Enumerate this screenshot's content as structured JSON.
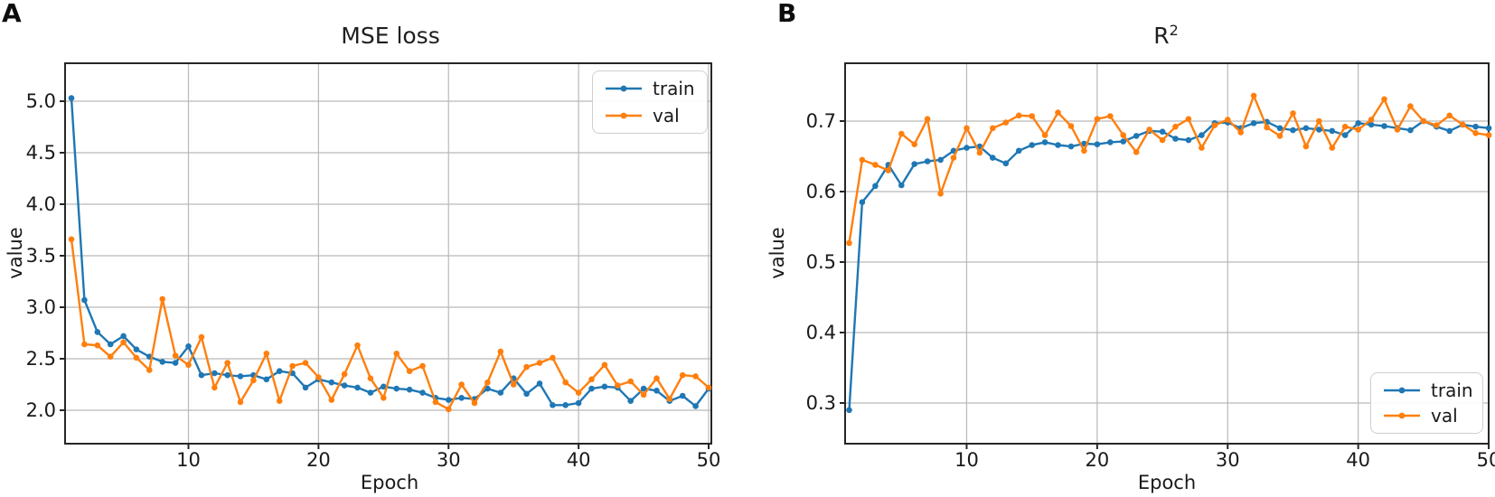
{
  "figure": {
    "panel_a_label": "A",
    "panel_b_label": "B",
    "background": "#ffffff"
  },
  "chart_data": [
    {
      "type": "line",
      "panel": "A",
      "title": "MSE loss",
      "xlabel": "Epoch",
      "ylabel": "value",
      "grid": true,
      "legend": {
        "position": "upper right",
        "entries": [
          "train",
          "val"
        ]
      },
      "xlim": [
        0.5,
        50.2
      ],
      "ylim": [
        1.67,
        5.37
      ],
      "xticks": [
        10,
        20,
        30,
        40,
        50
      ],
      "ytick_labels": [
        "5.0",
        "4.5",
        "4.0",
        "3.5",
        "3.0",
        "2.5",
        "2.0"
      ],
      "x": [
        1,
        2,
        3,
        4,
        5,
        6,
        7,
        8,
        9,
        10,
        11,
        12,
        13,
        14,
        15,
        16,
        17,
        18,
        19,
        20,
        21,
        22,
        23,
        24,
        25,
        26,
        27,
        28,
        29,
        30,
        31,
        32,
        33,
        34,
        35,
        36,
        37,
        38,
        39,
        40,
        41,
        42,
        43,
        44,
        45,
        46,
        47,
        48,
        49,
        50
      ],
      "series": [
        {
          "name": "train",
          "color": "#1f77b4",
          "values": [
            5.03,
            3.07,
            2.76,
            2.64,
            2.72,
            2.59,
            2.52,
            2.47,
            2.46,
            2.62,
            2.34,
            2.36,
            2.34,
            2.33,
            2.34,
            2.3,
            2.38,
            2.36,
            2.22,
            2.3,
            2.27,
            2.24,
            2.22,
            2.17,
            2.23,
            2.21,
            2.2,
            2.17,
            2.12,
            2.1,
            2.12,
            2.11,
            2.21,
            2.17,
            2.31,
            2.16,
            2.26,
            2.05,
            2.05,
            2.07,
            2.21,
            2.23,
            2.22,
            2.09,
            2.21,
            2.19,
            2.09,
            2.14,
            2.04,
            2.21
          ]
        },
        {
          "name": "val",
          "color": "#ff7f0e",
          "values": [
            3.66,
            2.64,
            2.63,
            2.52,
            2.66,
            2.51,
            2.39,
            3.08,
            2.53,
            2.44,
            2.71,
            2.22,
            2.46,
            2.08,
            2.29,
            2.55,
            2.09,
            2.43,
            2.46,
            2.32,
            2.1,
            2.35,
            2.63,
            2.31,
            2.12,
            2.55,
            2.38,
            2.43,
            2.08,
            2.01,
            2.25,
            2.07,
            2.27,
            2.57,
            2.25,
            2.42,
            2.46,
            2.51,
            2.27,
            2.17,
            2.3,
            2.44,
            2.24,
            2.28,
            2.15,
            2.31,
            2.11,
            2.34,
            2.33,
            2.22
          ]
        }
      ]
    },
    {
      "type": "line",
      "panel": "B",
      "title": "R²",
      "title_base": "R",
      "title_superscript": "2",
      "xlabel": "Epoch",
      "ylabel": "value",
      "grid": true,
      "legend": {
        "position": "lower right",
        "entries": [
          "train",
          "val"
        ]
      },
      "xlim": [
        0.7,
        50.0
      ],
      "ylim": [
        0.24,
        0.78
      ],
      "xticks": [
        10,
        20,
        30,
        40,
        50
      ],
      "ytick_labels": [
        "0.7",
        "0.6",
        "0.5",
        "0.4",
        "0.3"
      ],
      "x": [
        1,
        2,
        3,
        4,
        5,
        6,
        7,
        8,
        9,
        10,
        11,
        12,
        13,
        14,
        15,
        16,
        17,
        18,
        19,
        20,
        21,
        22,
        23,
        24,
        25,
        26,
        27,
        28,
        29,
        30,
        31,
        32,
        33,
        34,
        35,
        36,
        37,
        38,
        39,
        40,
        41,
        42,
        43,
        44,
        45,
        46,
        47,
        48,
        49,
        50
      ],
      "series": [
        {
          "name": "train",
          "color": "#1f77b4",
          "values": [
            0.29,
            0.585,
            0.608,
            0.638,
            0.609,
            0.639,
            0.643,
            0.645,
            0.658,
            0.662,
            0.664,
            0.648,
            0.64,
            0.658,
            0.666,
            0.67,
            0.666,
            0.664,
            0.668,
            0.667,
            0.67,
            0.671,
            0.679,
            0.686,
            0.685,
            0.675,
            0.673,
            0.68,
            0.697,
            0.698,
            0.69,
            0.697,
            0.699,
            0.69,
            0.687,
            0.69,
            0.688,
            0.686,
            0.68,
            0.697,
            0.695,
            0.693,
            0.69,
            0.687,
            0.7,
            0.692,
            0.686,
            0.695,
            0.692,
            0.69
          ]
        },
        {
          "name": "val",
          "color": "#ff7f0e",
          "values": [
            0.527,
            0.645,
            0.638,
            0.63,
            0.682,
            0.667,
            0.703,
            0.597,
            0.648,
            0.69,
            0.655,
            0.69,
            0.698,
            0.708,
            0.707,
            0.68,
            0.712,
            0.693,
            0.658,
            0.703,
            0.707,
            0.68,
            0.656,
            0.688,
            0.673,
            0.692,
            0.703,
            0.662,
            0.694,
            0.702,
            0.684,
            0.736,
            0.691,
            0.679,
            0.711,
            0.664,
            0.7,
            0.662,
            0.692,
            0.688,
            0.702,
            0.731,
            0.688,
            0.721,
            0.7,
            0.694,
            0.708,
            0.695,
            0.683,
            0.68
          ]
        }
      ]
    }
  ]
}
